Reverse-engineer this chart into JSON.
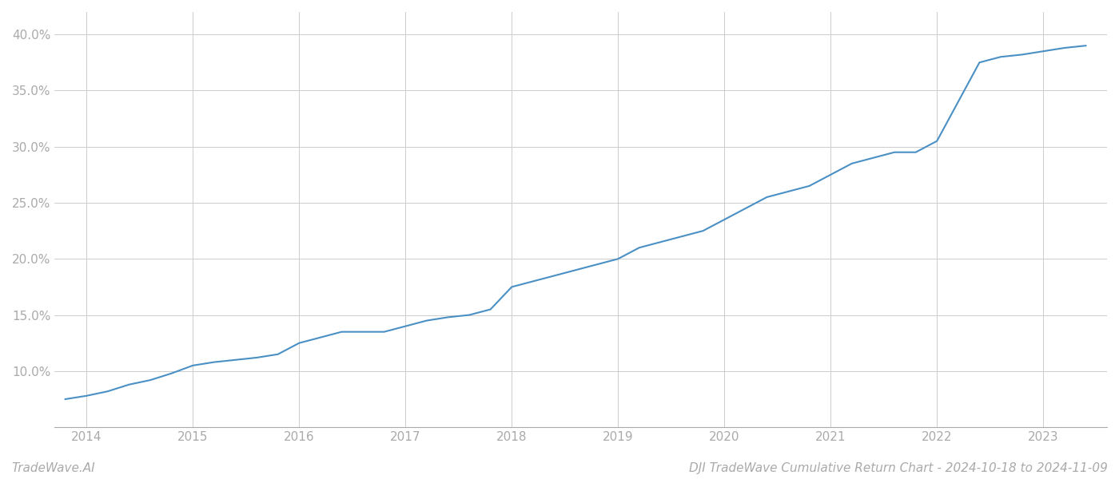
{
  "title": "DJI TradeWave Cumulative Return Chart - 2024-10-18 to 2024-11-09",
  "watermark": "TradeWave.AI",
  "line_color": "#4a90c4",
  "background_color": "#ffffff",
  "grid_color": "#cccccc",
  "x_years": [
    2014,
    2015,
    2016,
    2017,
    2018,
    2019,
    2020,
    2021,
    2022,
    2023
  ],
  "x_data": [
    2013.8,
    2014.0,
    2014.2,
    2014.4,
    2014.6,
    2014.8,
    2015.0,
    2015.2,
    2015.4,
    2015.6,
    2015.8,
    2016.0,
    2016.2,
    2016.4,
    2016.6,
    2016.8,
    2017.0,
    2017.2,
    2017.4,
    2017.6,
    2017.8,
    2018.0,
    2018.2,
    2018.4,
    2018.6,
    2018.8,
    2019.0,
    2019.2,
    2019.4,
    2019.6,
    2019.8,
    2020.0,
    2020.2,
    2020.4,
    2020.6,
    2020.8,
    2021.0,
    2021.2,
    2021.4,
    2021.6,
    2021.8,
    2022.0,
    2022.2,
    2022.4,
    2022.6,
    2022.8,
    2023.0,
    2023.2,
    2023.4
  ],
  "y_data": [
    7.5,
    7.8,
    8.2,
    8.8,
    9.2,
    9.8,
    10.5,
    10.8,
    11.0,
    11.2,
    11.5,
    12.5,
    13.0,
    13.5,
    13.5,
    13.5,
    14.0,
    14.5,
    14.8,
    15.0,
    15.5,
    17.5,
    18.0,
    18.5,
    19.0,
    19.5,
    20.0,
    21.0,
    21.5,
    22.0,
    22.5,
    23.5,
    24.5,
    25.5,
    26.0,
    26.5,
    27.5,
    28.5,
    29.0,
    29.5,
    29.5,
    30.5,
    34.0,
    37.5,
    38.0,
    38.2,
    38.5,
    38.8,
    39.0
  ],
  "ylim": [
    5.0,
    42.0
  ],
  "xlim": [
    2013.7,
    2023.6
  ],
  "yticks": [
    10.0,
    15.0,
    20.0,
    25.0,
    30.0,
    35.0,
    40.0
  ],
  "ytick_labels": [
    "10.0%",
    "15.0%",
    "20.0%",
    "25.0%",
    "30.0%",
    "35.0%",
    "40.0%"
  ],
  "title_fontsize": 11,
  "watermark_fontsize": 11,
  "tick_fontsize": 11,
  "line_width": 1.5
}
